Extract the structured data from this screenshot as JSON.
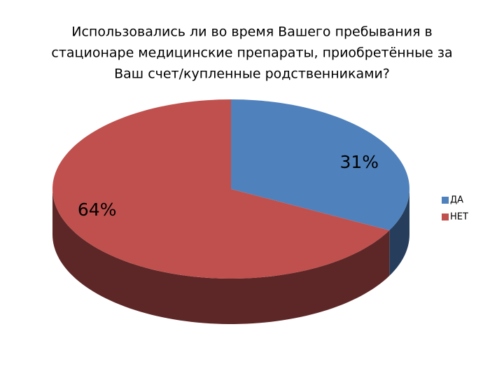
{
  "chart_data": {
    "type": "pie",
    "title": [
      "Использовались ли во время Вашего пребывания в",
      "стационаре медицинские препараты, приобретённые за",
      "Ваш счет/купленные родственниками?"
    ],
    "categories": [
      "ДА",
      "НЕТ"
    ],
    "values": [
      31,
      64
    ],
    "value_labels": [
      "31%",
      "64%"
    ],
    "colors": [
      "#4f81bd",
      "#c0504d"
    ],
    "side_colors": [
      "#263d5c",
      "#5e2727"
    ],
    "legend": "right"
  }
}
